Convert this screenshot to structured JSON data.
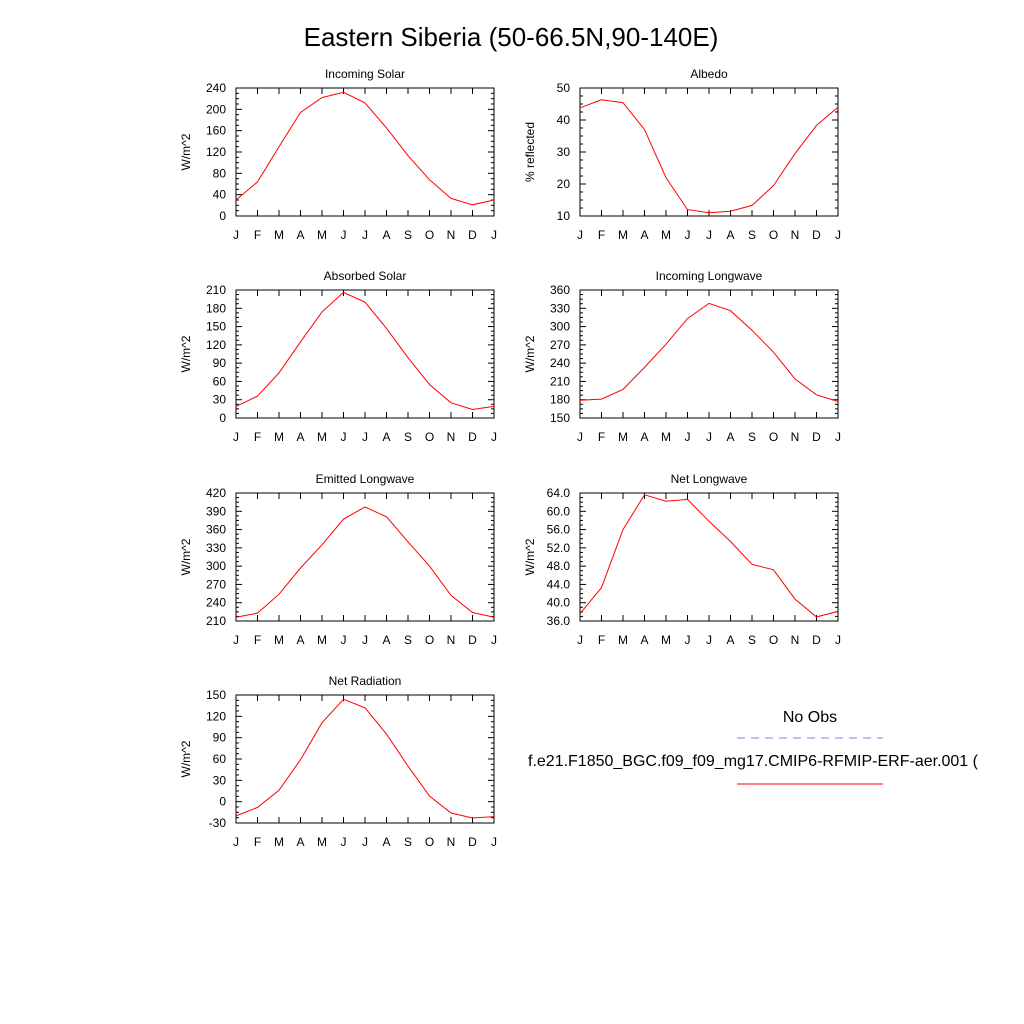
{
  "figure": {
    "title": "Eastern Siberia (50-66.5N,90-140E)",
    "legend": {
      "obs_label": "No Obs",
      "obs_color": "#8080ff",
      "model_label": "f.e21.F1850_BGC.f09_f09_mg17.CMIP6-RFMIP-ERF-aer.001 (",
      "model_color": "#ff0000"
    }
  },
  "chart_data": [
    {
      "type": "line",
      "title": "Incoming Solar",
      "ylabel": "W/m^2",
      "categories": [
        "J",
        "F",
        "M",
        "A",
        "M",
        "J",
        "J",
        "A",
        "S",
        "O",
        "N",
        "D",
        "J"
      ],
      "ylim": [
        0,
        240
      ],
      "yticks": [
        0,
        40,
        80,
        120,
        160,
        200,
        240
      ],
      "ytick_labels": [
        "0",
        "40",
        "80",
        "120",
        "160",
        "200",
        "240"
      ],
      "series": [
        {
          "values": [
            30,
            64,
            130,
            194,
            222,
            232,
            212,
            165,
            113,
            68,
            33,
            21,
            30
          ],
          "color": "#ff0000"
        }
      ]
    },
    {
      "type": "line",
      "title": "Albedo",
      "ylabel": "% reflected",
      "categories": [
        "J",
        "F",
        "M",
        "A",
        "M",
        "J",
        "J",
        "A",
        "S",
        "O",
        "N",
        "D",
        "J"
      ],
      "ylim": [
        10,
        50
      ],
      "yticks": [
        10,
        20,
        30,
        40,
        50
      ],
      "ytick_labels": [
        "10",
        "20",
        "30",
        "40",
        "50"
      ],
      "series": [
        {
          "values": [
            43.8,
            46.3,
            45.4,
            37,
            22,
            12,
            11,
            11.5,
            13.3,
            19.5,
            29.5,
            38.3,
            44
          ],
          "color": "#ff0000"
        }
      ]
    },
    {
      "type": "line",
      "title": "Absorbed Solar",
      "ylabel": "W/m^2",
      "categories": [
        "J",
        "F",
        "M",
        "A",
        "M",
        "J",
        "J",
        "A",
        "S",
        "O",
        "N",
        "D",
        "J"
      ],
      "ylim": [
        0,
        210
      ],
      "yticks": [
        0,
        30,
        60,
        90,
        120,
        150,
        180,
        210
      ],
      "ytick_labels": [
        "0",
        "30",
        "60",
        "90",
        "120",
        "150",
        "180",
        "210"
      ],
      "series": [
        {
          "values": [
            19,
            36,
            74,
            125,
            174,
            206,
            190,
            147,
            99,
            55,
            25,
            14,
            19
          ],
          "color": "#ff0000"
        }
      ]
    },
    {
      "type": "line",
      "title": "Incoming Longwave",
      "ylabel": "W/m^2",
      "categories": [
        "J",
        "F",
        "M",
        "A",
        "M",
        "J",
        "J",
        "A",
        "S",
        "O",
        "N",
        "D",
        "J"
      ],
      "ylim": [
        150,
        360
      ],
      "yticks": [
        150,
        180,
        210,
        240,
        270,
        300,
        330,
        360
      ],
      "ytick_labels": [
        "150",
        "180",
        "210",
        "240",
        "270",
        "300",
        "330",
        "360"
      ],
      "series": [
        {
          "values": [
            179,
            181,
            197,
            233,
            271,
            313,
            338,
            326,
            294,
            258,
            214,
            188,
            177
          ],
          "color": "#ff0000"
        }
      ]
    },
    {
      "type": "line",
      "title": "Emitted Longwave",
      "ylabel": "W/m^2",
      "categories": [
        "J",
        "F",
        "M",
        "A",
        "M",
        "J",
        "J",
        "A",
        "S",
        "O",
        "N",
        "D",
        "J"
      ],
      "ylim": [
        210,
        420
      ],
      "yticks": [
        210,
        240,
        270,
        300,
        330,
        360,
        390,
        420
      ],
      "ytick_labels": [
        "210",
        "240",
        "270",
        "300",
        "330",
        "360",
        "390",
        "420"
      ],
      "series": [
        {
          "values": [
            216,
            223,
            254,
            297,
            335,
            377,
            397,
            381,
            340,
            300,
            252,
            224,
            216
          ],
          "color": "#ff0000"
        }
      ]
    },
    {
      "type": "line",
      "title": "Net Longwave",
      "ylabel": "W/m^2",
      "categories": [
        "J",
        "F",
        "M",
        "A",
        "M",
        "J",
        "J",
        "A",
        "S",
        "O",
        "N",
        "D",
        "J"
      ],
      "ylim": [
        36,
        64
      ],
      "yticks": [
        36,
        40,
        44,
        48,
        52,
        56,
        60,
        64
      ],
      "ytick_labels": [
        "36.0",
        "40.0",
        "44.0",
        "48.0",
        "52.0",
        "56.0",
        "60.0",
        "64.0"
      ],
      "series": [
        {
          "values": [
            37.6,
            43.3,
            56,
            63.6,
            62.2,
            62.6,
            57.8,
            53.4,
            48.4,
            47.2,
            40.8,
            36.9,
            38.1
          ],
          "color": "#ff0000"
        }
      ]
    },
    {
      "type": "line",
      "title": "Net Radiation",
      "ylabel": "W/m^2",
      "categories": [
        "J",
        "F",
        "M",
        "A",
        "M",
        "J",
        "J",
        "A",
        "S",
        "O",
        "N",
        "D",
        "J"
      ],
      "ylim": [
        -30,
        150
      ],
      "yticks": [
        -30,
        0,
        30,
        60,
        90,
        120,
        150
      ],
      "ytick_labels": [
        "-30",
        "0",
        "30",
        "60",
        "90",
        "120",
        "150"
      ],
      "series": [
        {
          "values": [
            -20,
            -8,
            16,
            59,
            111,
            144,
            132,
            95,
            50,
            8,
            -16,
            -23,
            -21
          ],
          "color": "#ff0000"
        }
      ]
    }
  ]
}
